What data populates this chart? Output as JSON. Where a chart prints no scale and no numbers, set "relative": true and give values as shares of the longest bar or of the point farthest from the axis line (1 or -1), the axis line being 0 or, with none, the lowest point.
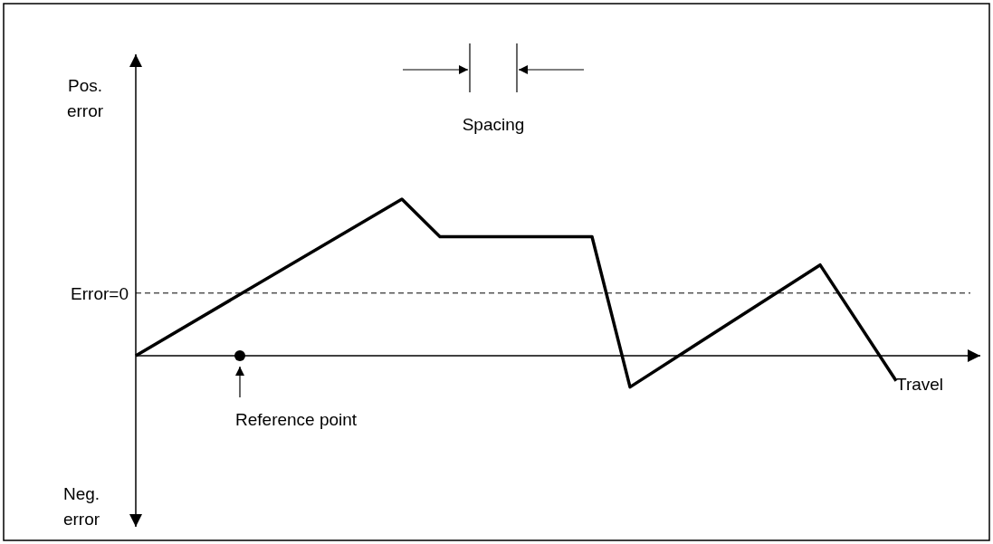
{
  "chart_data": {
    "type": "line",
    "relative": true,
    "xlabel": "Travel",
    "categories": [
      null,
      null,
      null,
      null,
      null,
      null,
      null,
      null,
      null,
      null,
      null,
      null,
      null,
      null,
      null,
      null,
      null,
      null,
      null,
      null,
      null
    ],
    "series": [
      {
        "color": "#000000",
        "values": [
          0,
          null,
          null,
          null,
          null,
          null,
          null,
          1,
          0.76,
          null,
          null,
          null,
          0.76,
          -0.2,
          null,
          null,
          null,
          null,
          0.58,
          null,
          -0.16
        ]
      }
    ],
    "ref_lines": [
      {
        "axis": "y",
        "value": 0.4,
        "label": "Error=0",
        "color": "#000000",
        "line_style": "dashed"
      }
    ],
    "annotations": [
      "Pos. error",
      "Neg. error",
      "Spacing",
      "Reference point"
    ]
  }
}
